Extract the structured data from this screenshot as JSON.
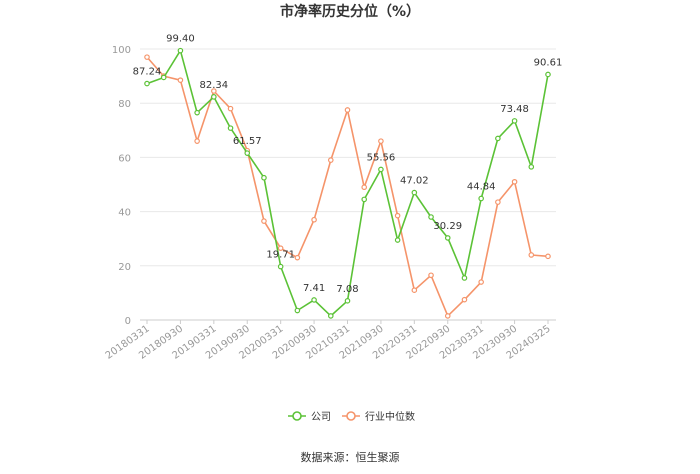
{
  "chart_data": {
    "type": "line",
    "title": "市净率历史分位（%）",
    "source": "数据来源：恒生聚源",
    "xlabel": "",
    "ylabel": "",
    "ylim": [
      0,
      100
    ],
    "yticks": [
      "0",
      "20",
      "40",
      "60",
      "80",
      "100"
    ],
    "grid": "horizontal",
    "legend_position": "bottom",
    "x": [
      "20180331",
      "20180630",
      "20180930",
      "20181231",
      "20190331",
      "20190630",
      "20190930",
      "20191231",
      "20200331",
      "20200630",
      "20200930",
      "20201231",
      "20210331",
      "20210630",
      "20210930",
      "20211231",
      "20220331",
      "20220630",
      "20220930",
      "20221231",
      "20230331",
      "20230630",
      "20230930",
      "20231231",
      "20240325"
    ],
    "x_tick_labels": [
      "20180331",
      "20180930",
      "20190331",
      "20190930",
      "20200331",
      "20200930",
      "20210331",
      "20210930",
      "20220331",
      "20220930",
      "20230331",
      "20230930",
      "20240325"
    ],
    "series": [
      {
        "name": "公司",
        "color": "#5bc236",
        "values": [
          87.24,
          89.5,
          99.4,
          76.5,
          82.34,
          70.8,
          61.57,
          52.5,
          19.71,
          3.5,
          7.41,
          1.5,
          7.08,
          44.5,
          55.56,
          29.5,
          47.02,
          38.0,
          30.29,
          15.5,
          44.84,
          67.0,
          73.48,
          56.5,
          90.61
        ],
        "data_labels": [
          "87.24",
          "",
          "99.40",
          "",
          "82.34",
          "",
          "61.57",
          "",
          "19.71",
          "",
          "7.41",
          "",
          "7.08",
          "",
          "55.56",
          "",
          "47.02",
          "",
          "30.29",
          "",
          "44.84",
          "",
          "73.48",
          "",
          "90.61"
        ]
      },
      {
        "name": "行业中位数",
        "color": "#f5946a",
        "values": [
          97.0,
          90.0,
          88.5,
          66.0,
          84.5,
          78.0,
          62.5,
          36.5,
          26.5,
          23.0,
          37.0,
          59.0,
          77.5,
          49.0,
          66.0,
          38.5,
          11.0,
          16.5,
          1.5,
          7.5,
          14.0,
          43.5,
          51.0,
          24.0,
          23.5
        ]
      }
    ]
  }
}
